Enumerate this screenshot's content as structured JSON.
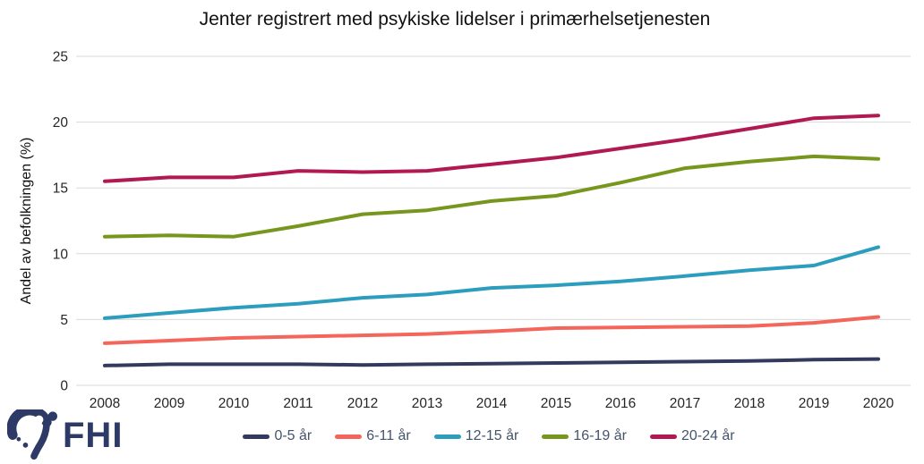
{
  "colors": {
    "background": "#FFFFFF",
    "grid": "#D9D9D9",
    "axis_text": "#262626",
    "legend_text": "#44546A",
    "logo": "#2E3A66"
  },
  "logo_text": "FHI",
  "chart_data": {
    "type": "line",
    "title": "Jenter registrert med psykiske lidelser i primærhelsetjenesten",
    "ylabel": "Andel av befolkningen (%)",
    "xlabel": "",
    "ylim": [
      0,
      25
    ],
    "y_ticks": [
      0,
      5,
      10,
      15,
      20,
      25
    ],
    "grid": "horizontal",
    "legend_position": "bottom",
    "x": [
      "2008",
      "2009",
      "2010",
      "2011",
      "2012",
      "2013",
      "2014",
      "2015",
      "2016",
      "2017",
      "2018",
      "2019",
      "2020"
    ],
    "series": [
      {
        "name": "0-5 år",
        "color": "#333A5E",
        "values": [
          1.5,
          1.6,
          1.6,
          1.6,
          1.55,
          1.6,
          1.65,
          1.7,
          1.75,
          1.8,
          1.85,
          1.95,
          2.0
        ]
      },
      {
        "name": "6-11 år",
        "color": "#F4655C",
        "values": [
          3.2,
          3.4,
          3.6,
          3.7,
          3.8,
          3.9,
          4.1,
          4.35,
          4.4,
          4.45,
          4.5,
          4.75,
          5.2
        ]
      },
      {
        "name": "12-15 år",
        "color": "#2D9DBD",
        "values": [
          5.1,
          5.5,
          5.9,
          6.2,
          6.65,
          6.9,
          7.4,
          7.6,
          7.9,
          8.3,
          8.75,
          9.1,
          10.5
        ]
      },
      {
        "name": "16-19 år",
        "color": "#76961E",
        "values": [
          11.3,
          11.4,
          11.3,
          12.1,
          13.0,
          13.3,
          14.0,
          14.4,
          15.4,
          16.5,
          17.0,
          17.4,
          17.2
        ]
      },
      {
        "name": "20-24 år",
        "color": "#B01951",
        "values": [
          15.5,
          15.8,
          15.8,
          16.3,
          16.2,
          16.3,
          16.8,
          17.3,
          18.0,
          18.7,
          19.5,
          20.3,
          20.5
        ]
      }
    ]
  }
}
